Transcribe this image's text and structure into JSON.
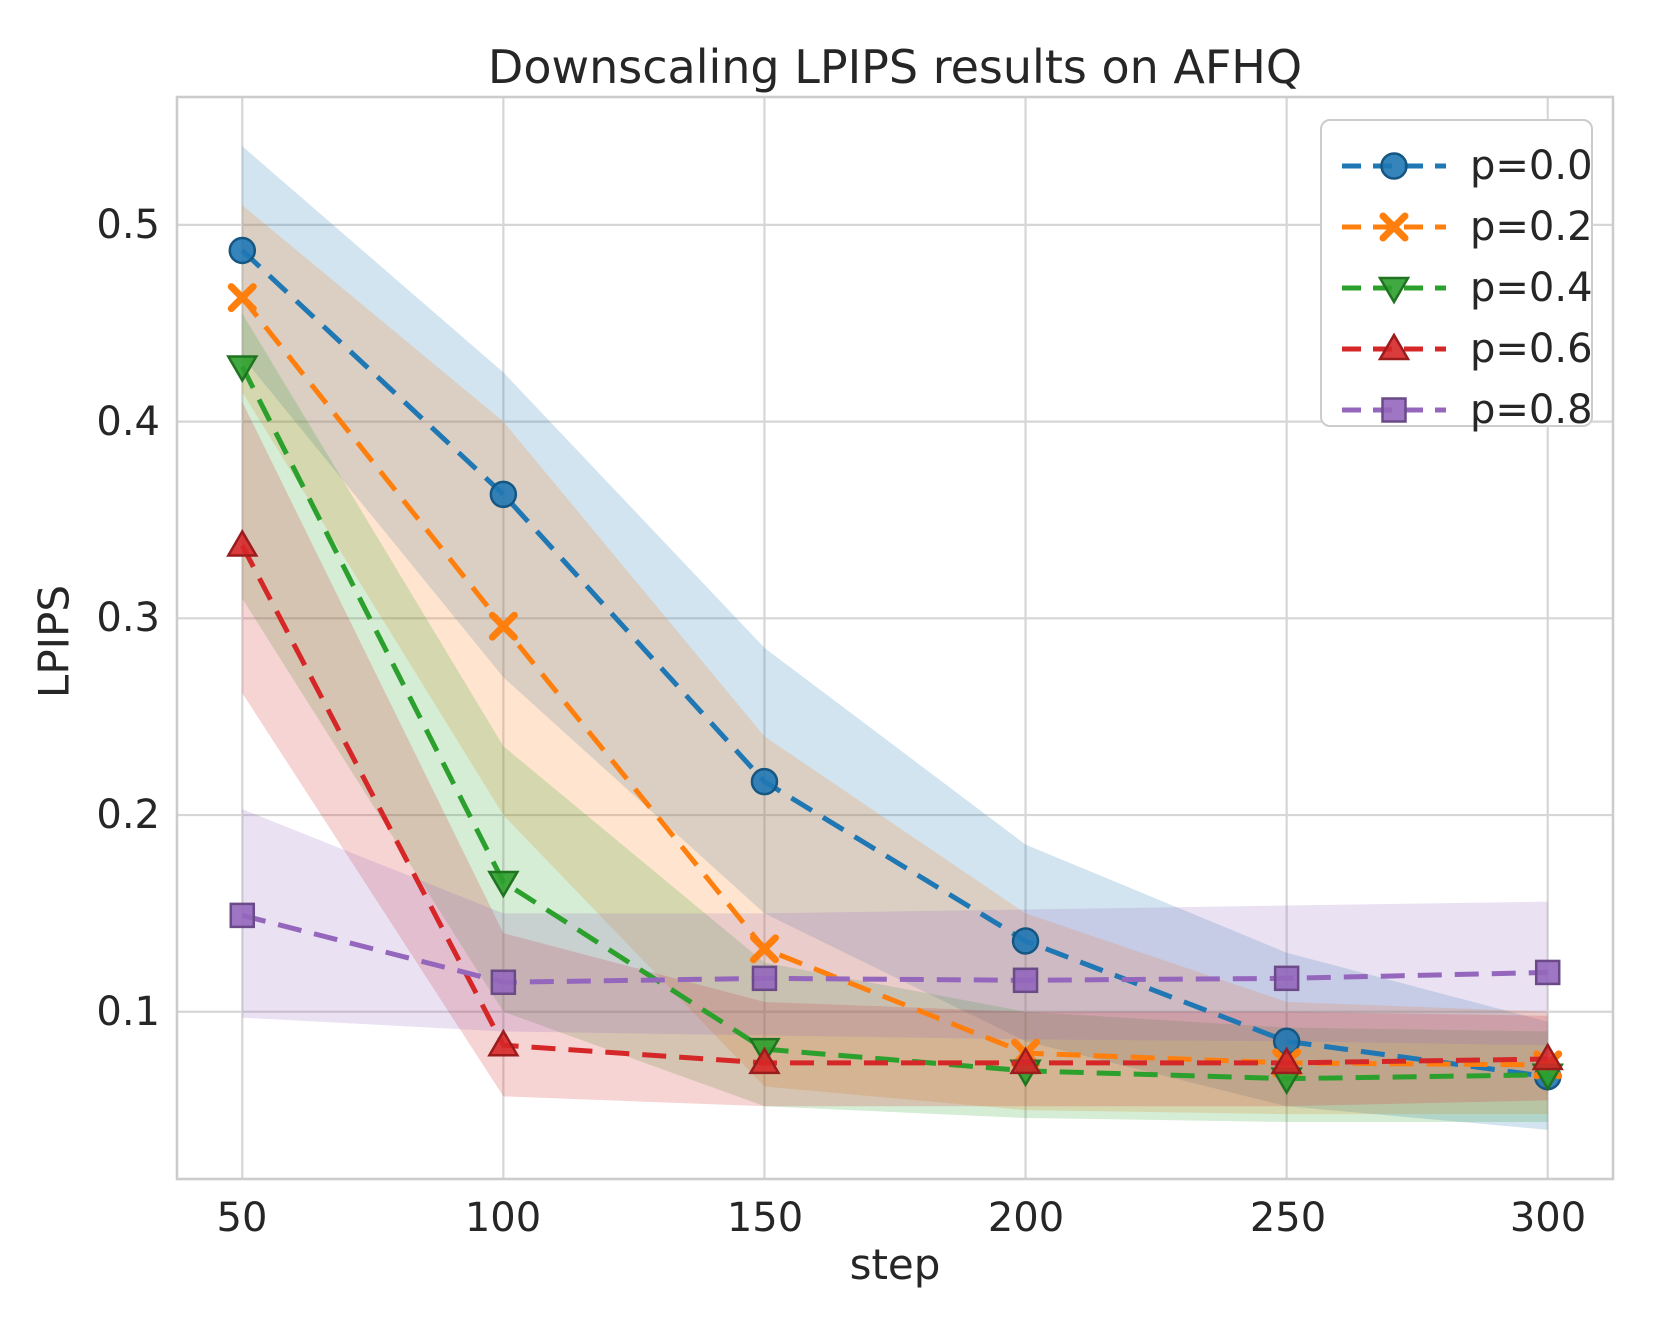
{
  "styles": {
    "background": "#ffffff",
    "grid_color": "#d6d6d6",
    "spine_color": "#cccccc",
    "text_color": "#262626",
    "legend_border": "#cccccc"
  },
  "chart_data": {
    "type": "line",
    "title": "Downscaling LPIPS results on AFHQ",
    "xlabel": "step",
    "ylabel": "LPIPS",
    "x": [
      50,
      100,
      150,
      200,
      250,
      300
    ],
    "xtick_labels": [
      "50",
      "100",
      "150",
      "200",
      "250",
      "300"
    ],
    "ytick_values": [
      0.1,
      0.2,
      0.3,
      0.4,
      0.5
    ],
    "ytick_labels": [
      "0.1",
      "0.2",
      "0.3",
      "0.4",
      "0.5"
    ],
    "xlim": [
      37.5,
      312.5
    ],
    "ylim": [
      0.015,
      0.565
    ],
    "grid": true,
    "line_style": "dashed",
    "legend_position": "upper right",
    "series": [
      {
        "label": "p=0.0",
        "color": "#1f77b4",
        "marker": "circle",
        "values": [
          0.487,
          0.363,
          0.217,
          0.136,
          0.085,
          0.067
        ],
        "band_upper": [
          0.54,
          0.425,
          0.285,
          0.185,
          0.13,
          0.095
        ],
        "band_lower": [
          0.433,
          0.27,
          0.15,
          0.085,
          0.052,
          0.04
        ]
      },
      {
        "label": "p=0.2",
        "color": "#ff7f0e",
        "marker": "x",
        "values": [
          0.463,
          0.296,
          0.132,
          0.079,
          0.074,
          0.073
        ],
        "band_upper": [
          0.51,
          0.4,
          0.24,
          0.15,
          0.105,
          0.1
        ],
        "band_lower": [
          0.415,
          0.2,
          0.062,
          0.05,
          0.048,
          0.048
        ]
      },
      {
        "label": "p=0.4",
        "color": "#2ca02c",
        "marker": "triangle-down",
        "values": [
          0.428,
          0.166,
          0.081,
          0.07,
          0.066,
          0.068
        ],
        "band_upper": [
          0.455,
          0.235,
          0.125,
          0.1,
          0.092,
          0.09
        ],
        "band_lower": [
          0.31,
          0.1,
          0.052,
          0.046,
          0.044,
          0.044
        ]
      },
      {
        "label": "p=0.6",
        "color": "#d62728",
        "marker": "triangle-up",
        "values": [
          0.337,
          0.083,
          0.074,
          0.074,
          0.074,
          0.076
        ],
        "band_upper": [
          0.41,
          0.14,
          0.105,
          0.1,
          0.1,
          0.098
        ],
        "band_lower": [
          0.262,
          0.057,
          0.052,
          0.052,
          0.052,
          0.055
        ]
      },
      {
        "label": "p=0.8",
        "color": "#9467bd",
        "marker": "square",
        "values": [
          0.149,
          0.115,
          0.117,
          0.116,
          0.117,
          0.12
        ],
        "band_upper": [
          0.203,
          0.15,
          0.15,
          0.152,
          0.154,
          0.156
        ],
        "band_lower": [
          0.097,
          0.09,
          0.088,
          0.086,
          0.085,
          0.083
        ]
      }
    ]
  }
}
